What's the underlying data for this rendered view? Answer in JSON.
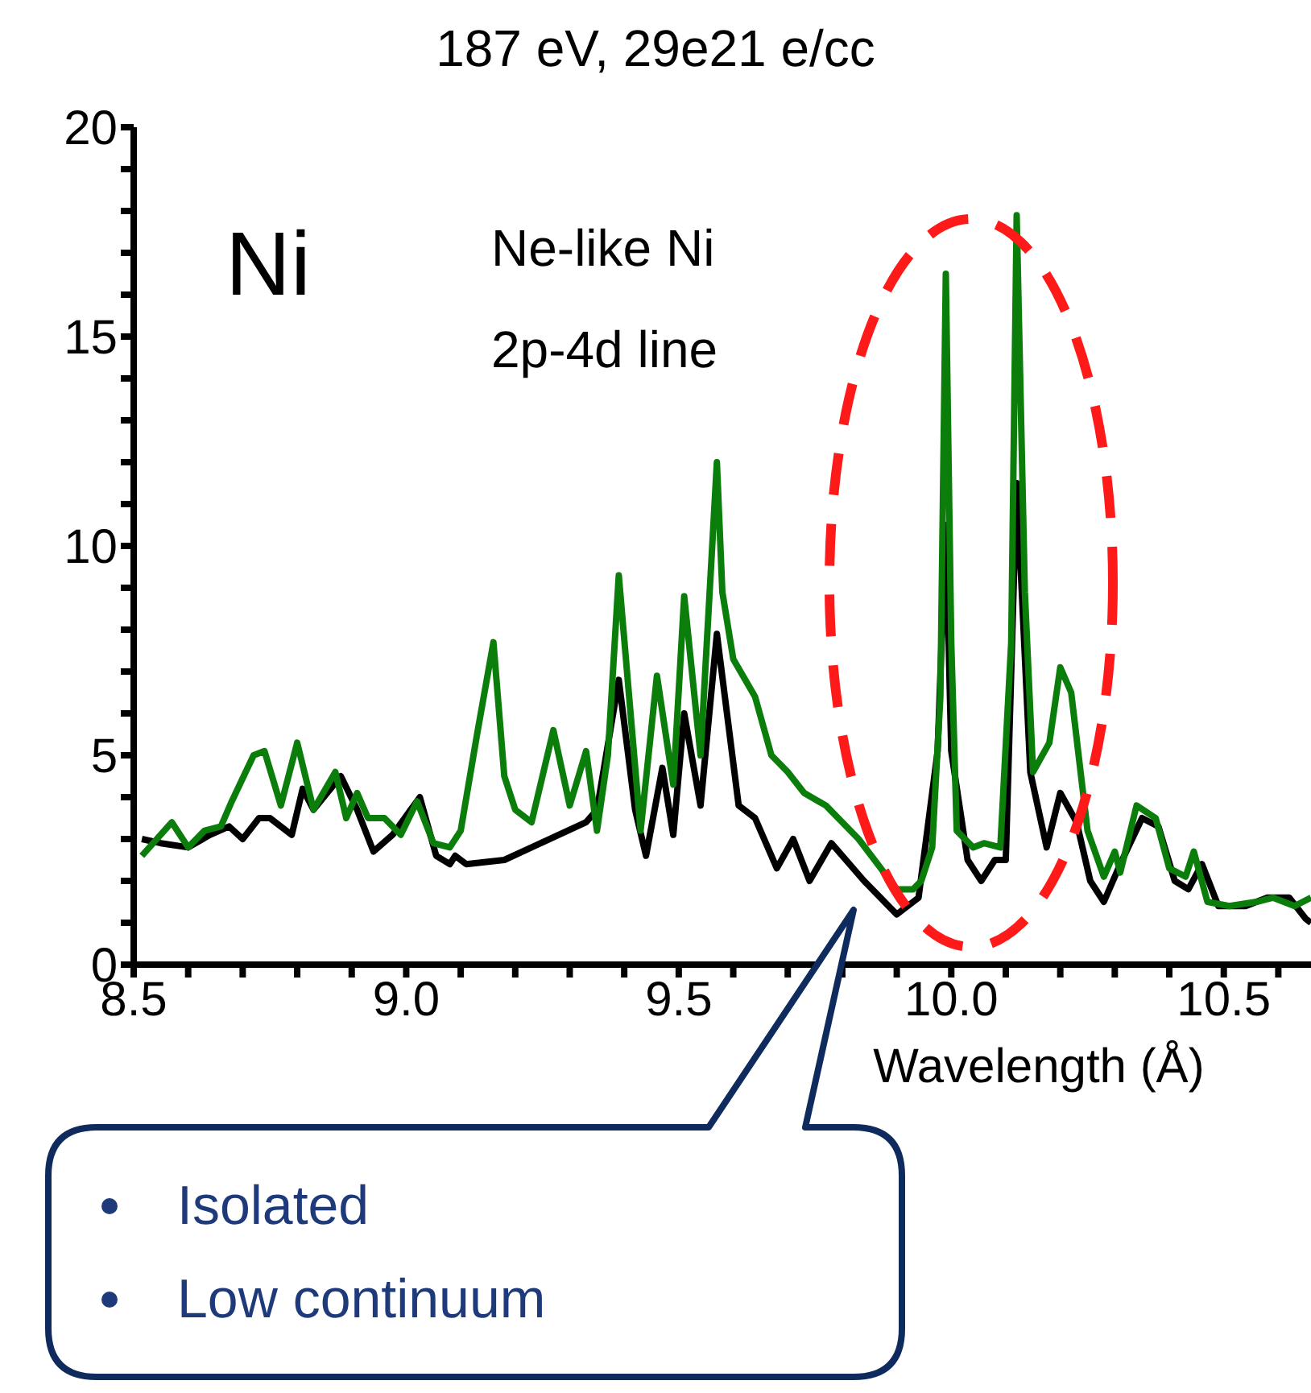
{
  "chart_data": {
    "type": "line",
    "title": "187 eV, 29e21 e/cc",
    "xlabel": "Wavelength (Å)",
    "annotations": [
      "Ni",
      "Ne-like Ni",
      "2p-4d line",
      "Isolated",
      "Low continuum"
    ],
    "xlim": [
      8.5,
      10.66
    ],
    "xticks": [
      8.5,
      {
        "value": 8.6,
        "label": null
      },
      {
        "value": 8.7,
        "label": null
      },
      {
        "value": 8.8,
        "label": null
      },
      {
        "value": 8.9,
        "label": null
      },
      {
        "value": 9.0,
        "label": "9.0"
      },
      {
        "value": 9.1,
        "label": null
      },
      {
        "value": 9.2,
        "label": null
      },
      {
        "value": 9.3,
        "label": null
      },
      {
        "value": 9.4,
        "label": null
      },
      9.5,
      {
        "value": 9.6,
        "label": null
      },
      {
        "value": 9.7,
        "label": null
      },
      {
        "value": 9.8,
        "label": null
      },
      {
        "value": 9.9,
        "label": null
      },
      {
        "value": 10.0,
        "label": "10.0"
      },
      {
        "value": 10.1,
        "label": null
      },
      {
        "value": 10.2,
        "label": null
      },
      {
        "value": 10.3,
        "label": null
      },
      {
        "value": 10.4,
        "label": null
      },
      10.5,
      {
        "value": 10.6,
        "label": null
      }
    ],
    "ylim": [
      0,
      20
    ],
    "yticks": [
      0,
      {
        "value": 1,
        "label": null
      },
      {
        "value": 2,
        "label": null
      },
      {
        "value": 3,
        "label": null
      },
      {
        "value": 4,
        "label": null
      },
      5,
      {
        "value": 6,
        "label": null
      },
      {
        "value": 7,
        "label": null
      },
      {
        "value": 8,
        "label": null
      },
      {
        "value": 9,
        "label": null
      },
      10,
      {
        "value": 11,
        "label": null
      },
      {
        "value": 12,
        "label": null
      },
      {
        "value": 13,
        "label": null
      },
      {
        "value": 14,
        "label": null
      },
      15,
      {
        "value": 16,
        "label": null
      },
      {
        "value": 17,
        "label": null
      },
      {
        "value": 18,
        "label": null
      },
      {
        "value": 19,
        "label": null
      },
      20
    ],
    "series": [
      {
        "color": "#000000",
        "x": [
          8.515,
          8.55,
          8.6,
          8.64,
          8.675,
          8.7,
          8.73,
          8.75,
          8.79,
          8.81,
          8.83,
          8.88,
          8.91,
          8.94,
          8.975,
          9.025,
          9.055,
          9.08,
          9.09,
          9.11,
          9.18,
          9.23,
          9.33,
          9.35,
          9.39,
          9.42,
          9.44,
          9.47,
          9.49,
          9.51,
          9.54,
          9.57,
          9.61,
          9.64,
          9.68,
          9.71,
          9.74,
          9.78,
          9.84,
          9.9,
          9.94,
          9.975,
          9.99,
          10.0,
          10.03,
          10.055,
          10.08,
          10.1,
          10.12,
          10.145,
          10.175,
          10.2,
          10.23,
          10.255,
          10.28,
          10.31,
          10.35,
          10.38,
          10.41,
          10.435,
          10.46,
          10.49,
          10.54,
          10.58,
          10.62,
          10.65,
          10.66
        ],
        "values": [
          3.0,
          2.9,
          2.8,
          3.1,
          3.3,
          3.0,
          3.5,
          3.5,
          3.1,
          4.2,
          3.7,
          4.5,
          3.7,
          2.7,
          3.1,
          4.0,
          2.6,
          2.4,
          2.6,
          2.4,
          2.5,
          2.8,
          3.4,
          3.7,
          6.8,
          3.7,
          2.6,
          4.7,
          3.1,
          6.0,
          3.8,
          7.9,
          3.8,
          3.5,
          2.3,
          3.0,
          2.0,
          2.9,
          2.0,
          1.2,
          1.6,
          5.1,
          10.5,
          5.1,
          2.5,
          2.0,
          2.5,
          2.5,
          11.5,
          4.6,
          2.8,
          4.1,
          3.4,
          2.0,
          1.5,
          2.4,
          3.5,
          3.3,
          2.0,
          1.8,
          2.4,
          1.4,
          1.4,
          1.6,
          1.6,
          1.1,
          1.0
        ]
      },
      {
        "color": "#0b7d0b",
        "x": [
          8.515,
          8.57,
          8.6,
          8.63,
          8.66,
          8.68,
          8.72,
          8.74,
          8.77,
          8.8,
          8.83,
          8.87,
          8.89,
          8.91,
          8.93,
          8.96,
          8.99,
          9.02,
          9.05,
          9.08,
          9.1,
          9.13,
          9.16,
          9.18,
          9.2,
          9.23,
          9.27,
          9.3,
          9.33,
          9.35,
          9.37,
          9.39,
          9.43,
          9.46,
          9.49,
          9.51,
          9.54,
          9.57,
          9.58,
          9.6,
          9.64,
          9.67,
          9.7,
          9.73,
          9.77,
          9.83,
          9.9,
          9.93,
          9.945,
          9.965,
          9.98,
          9.99,
          10.0,
          10.01,
          10.04,
          10.06,
          10.09,
          10.11,
          10.12,
          10.135,
          10.15,
          10.18,
          10.2,
          10.22,
          10.25,
          10.28,
          10.3,
          10.31,
          10.34,
          10.375,
          10.4,
          10.43,
          10.445,
          10.47,
          10.51,
          10.56,
          10.59,
          10.63,
          10.66
        ],
        "values": [
          2.6,
          3.4,
          2.8,
          3.2,
          3.3,
          3.9,
          5.0,
          5.1,
          3.8,
          5.3,
          3.7,
          4.6,
          3.5,
          4.1,
          3.5,
          3.5,
          3.1,
          3.9,
          2.9,
          2.8,
          3.2,
          5.5,
          7.7,
          4.5,
          3.7,
          3.4,
          5.6,
          3.8,
          5.1,
          3.2,
          5.0,
          9.3,
          3.2,
          6.9,
          4.3,
          8.8,
          5.0,
          12.0,
          8.9,
          7.3,
          6.4,
          5.0,
          4.6,
          4.1,
          3.8,
          3.0,
          1.8,
          1.8,
          2.0,
          2.8,
          6.4,
          16.5,
          7.7,
          3.2,
          2.8,
          2.9,
          2.8,
          7.7,
          17.9,
          8.9,
          4.6,
          5.3,
          7.1,
          6.5,
          3.2,
          2.1,
          2.7,
          2.2,
          3.8,
          3.5,
          2.3,
          2.1,
          2.7,
          1.5,
          1.4,
          1.5,
          1.6,
          1.4,
          1.6
        ]
      }
    ]
  }
}
